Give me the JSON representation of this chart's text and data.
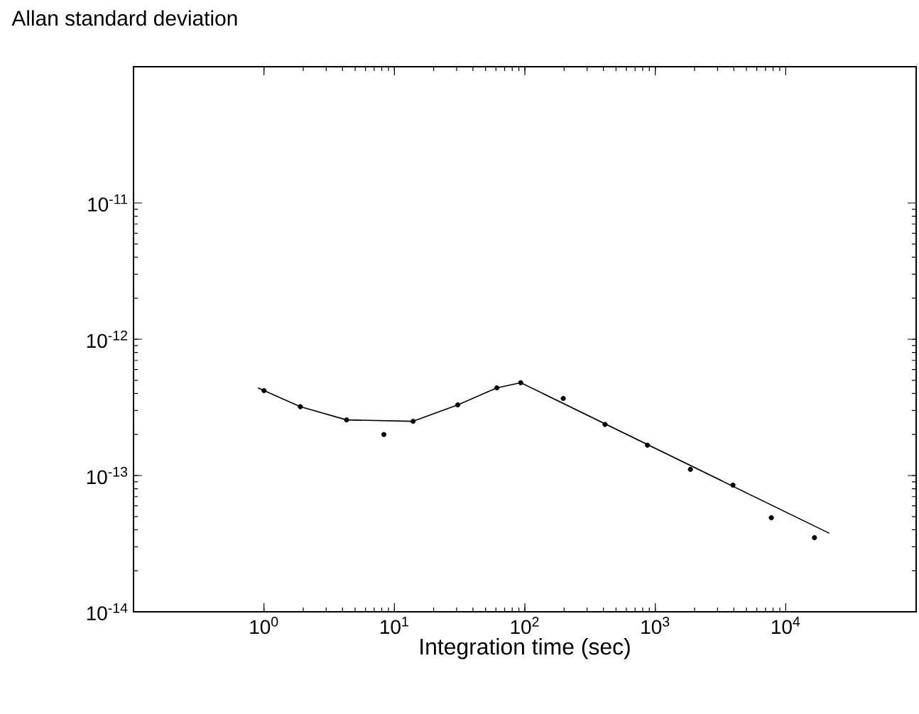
{
  "chart_data": {
    "type": "scatter",
    "title": "Allan standard deviation",
    "xlabel": "Integration time (sec)",
    "log": "xy",
    "grid": false,
    "xlim": [
      0.1,
      100000
    ],
    "ylim": [
      1e-14,
      1e-10
    ],
    "xticks": [
      {
        "value": 1,
        "label": "10$^{0}$"
      },
      {
        "value": 10,
        "label": "10$^{1}$"
      },
      {
        "value": 100,
        "label": "10$^{2}$"
      },
      {
        "value": 1000,
        "label": "10$^{3}$"
      },
      {
        "value": 10000,
        "label": "10$^{4}$"
      }
    ],
    "yticks": [
      {
        "value": 1e-14,
        "label": "10$^{-14}$"
      },
      {
        "value": 1e-13,
        "label": "10$^{-13}$"
      },
      {
        "value": 1e-12,
        "label": "10$^{-12}$"
      },
      {
        "value": 1e-11,
        "label": "10$^{-11}$"
      }
    ],
    "series": [
      {
        "color": "#000000",
        "marker": "circle",
        "x": [
          1,
          1.9,
          4.3,
          8.3,
          13.9,
          30.6,
          61,
          93,
          197,
          412,
          871,
          1860,
          3940,
          7760,
          16600
        ],
        "values": [
          4.2e-13,
          3.2e-13,
          2.56e-13,
          2e-13,
          2.5e-13,
          3.3e-13,
          4.4e-13,
          4.8e-13,
          3.68e-13,
          2.37e-13,
          1.67e-13,
          1.11e-13,
          8.5e-14,
          4.9e-14,
          3.5e-14
        ]
      },
      {
        "type": "line",
        "color": "#000000",
        "line_style": "solid",
        "marker": "none",
        "x": [
          0.9,
          1.9,
          4.3,
          13.9,
          30.6,
          61,
          93,
          21600
        ],
        "values": [
          4.4e-13,
          3.2e-13,
          2.56e-13,
          2.5e-13,
          3.3e-13,
          4.4e-13,
          4.8e-13,
          3.77e-14
        ]
      }
    ]
  }
}
